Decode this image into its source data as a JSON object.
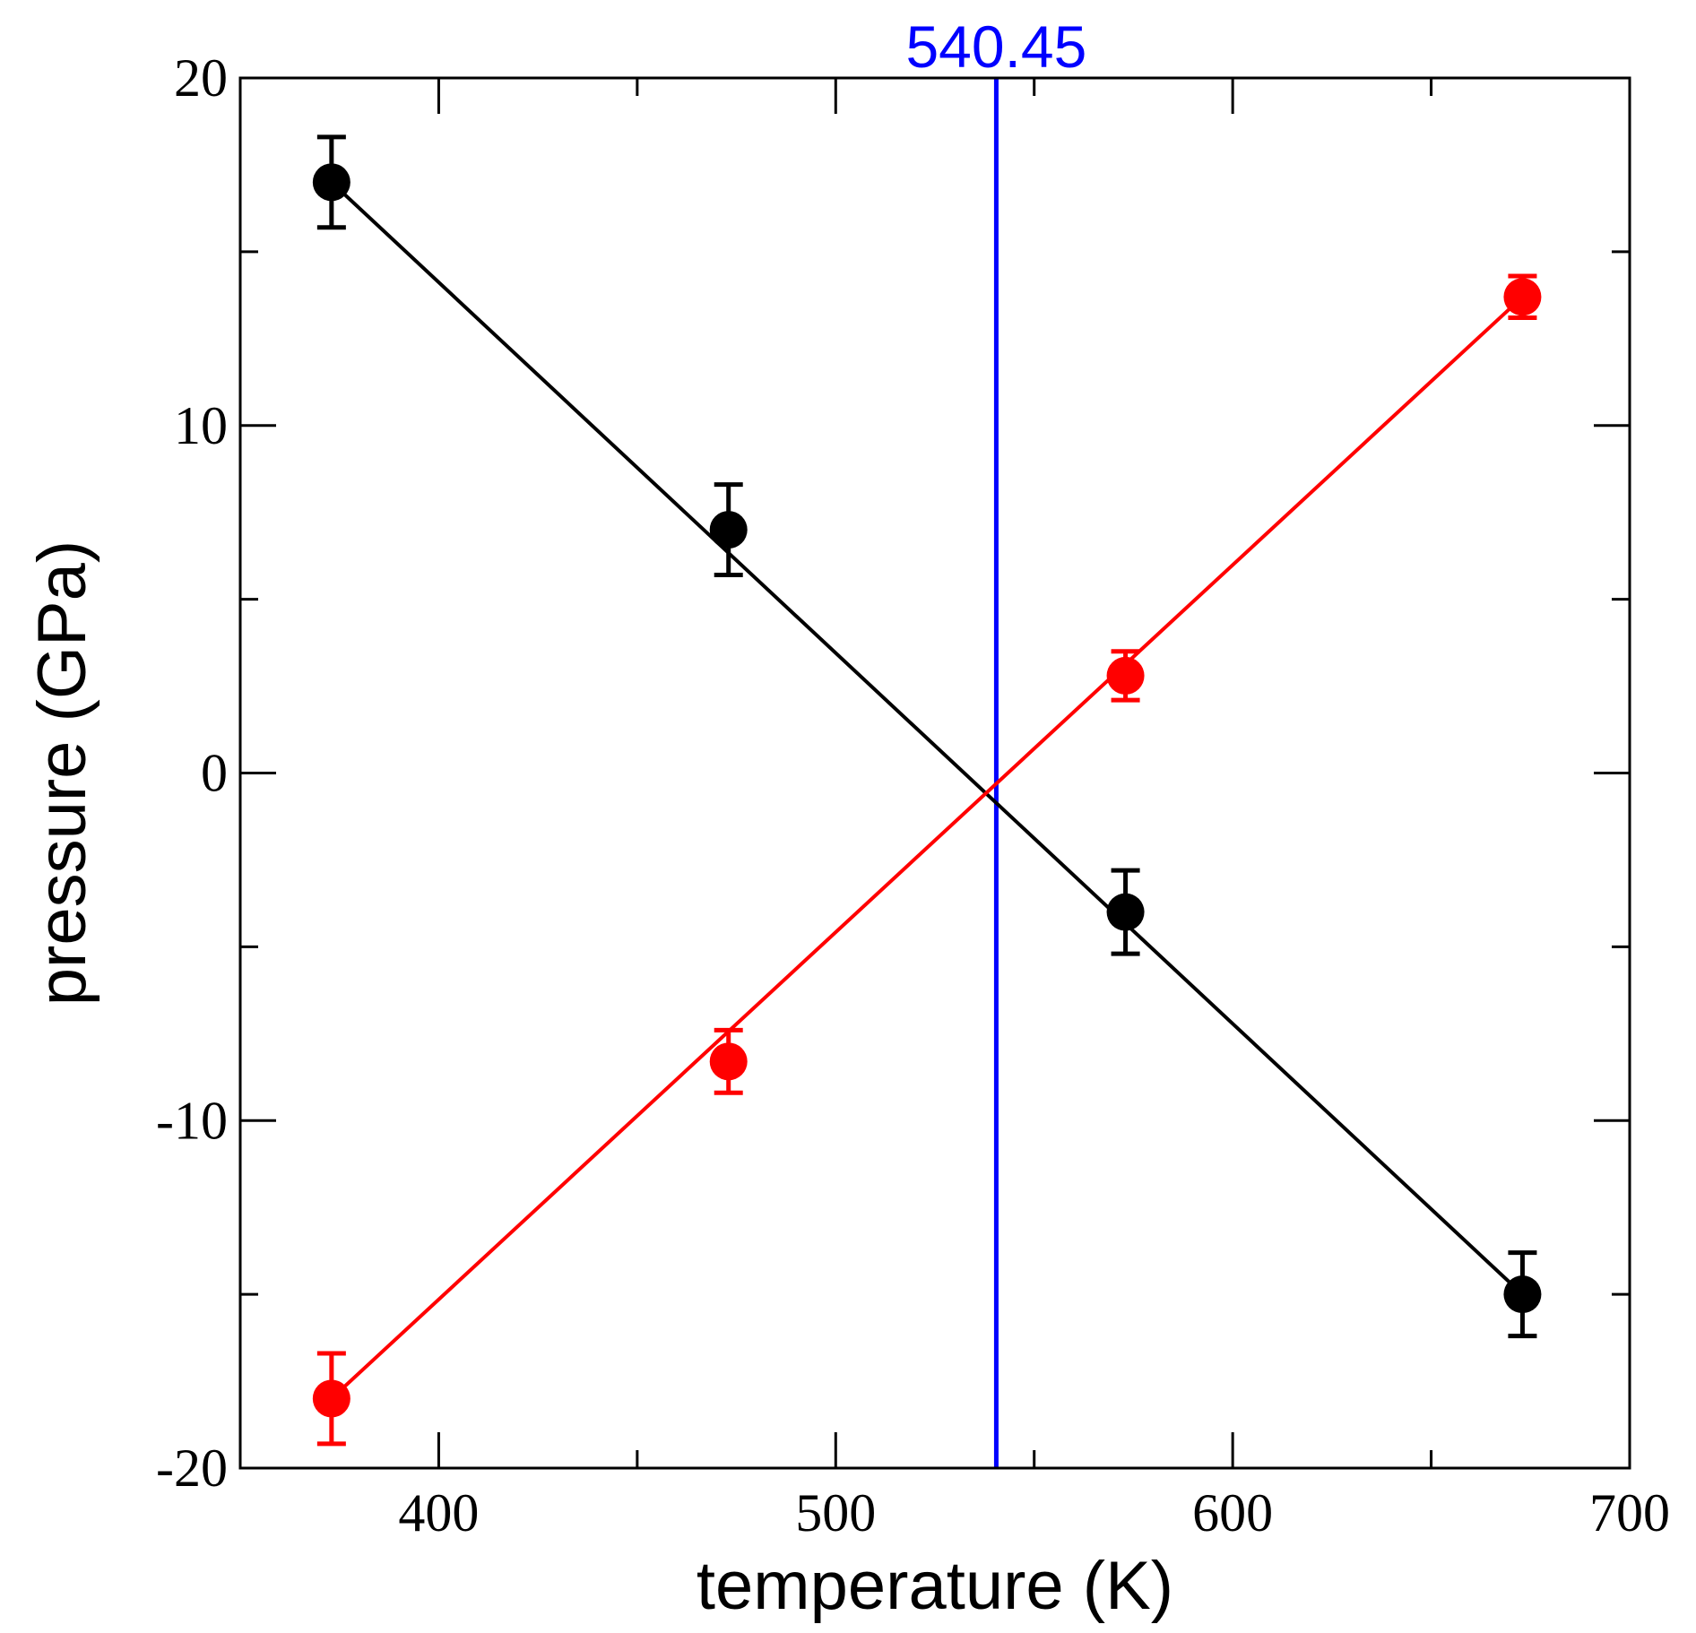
{
  "chart_data": {
    "type": "scatter",
    "xlabel": "temperature (K)",
    "ylabel": "pressure (GPa)",
    "xlim": [
      350,
      700
    ],
    "ylim": [
      -20,
      20
    ],
    "x_ticks": [
      400,
      500,
      600,
      700
    ],
    "y_ticks": [
      -20,
      -10,
      0,
      10,
      20
    ],
    "x_minor_step": 50,
    "y_minor_step": 5,
    "grid": false,
    "series": [
      {
        "name": "black series",
        "color": "#000000",
        "x": [
          373,
          473,
          573,
          673
        ],
        "y": [
          17.0,
          7.0,
          -4.0,
          -15.0
        ],
        "err": [
          1.3,
          1.3,
          1.2,
          1.2
        ],
        "fit_line": {
          "x": [
            373,
            673
          ],
          "y": [
            17.0,
            -15.0
          ]
        }
      },
      {
        "name": "red series",
        "color": "#ff0000",
        "x": [
          373,
          473,
          573,
          673
        ],
        "y": [
          -18.0,
          -8.3,
          2.8,
          13.7
        ],
        "err": [
          1.3,
          0.9,
          0.7,
          0.6
        ],
        "fit_line": {
          "x": [
            373,
            673
          ],
          "y": [
            -18.0,
            13.7
          ]
        }
      }
    ],
    "annotations": [
      {
        "type": "vline",
        "x": 540.45,
        "color": "#0000ff",
        "label": "540.45"
      }
    ]
  }
}
